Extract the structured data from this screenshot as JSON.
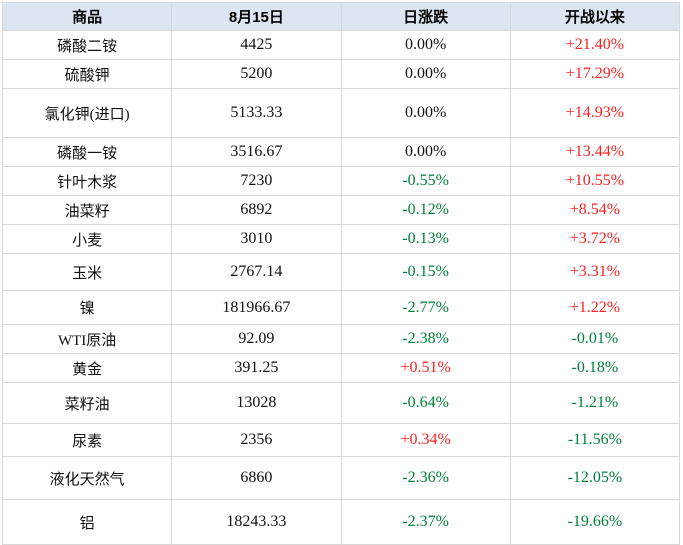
{
  "colors": {
    "up": "#fa2121",
    "down": "#00803a",
    "flat": "#111111",
    "header_bg": "#dce6f3",
    "grid_border": "#d8d8d8"
  },
  "chart_data": {
    "type": "table",
    "title": "",
    "columns": [
      "商品",
      "8月15日",
      "日涨跌",
      "开战以来"
    ],
    "rows": [
      {
        "name": "磷酸二铵",
        "price": "4425",
        "daily": "0.00%",
        "daily_dir": "flat",
        "since": "+21.40%",
        "since_dir": "up"
      },
      {
        "name": "硫酸钾",
        "price": "5200",
        "daily": "0.00%",
        "daily_dir": "flat",
        "since": "+17.29%",
        "since_dir": "up"
      },
      {
        "name": "氯化钾(进口)",
        "price": "5133.33",
        "daily": "0.00%",
        "daily_dir": "flat",
        "since": "+14.93%",
        "since_dir": "up"
      },
      {
        "name": "磷酸一铵",
        "price": "3516.67",
        "daily": "0.00%",
        "daily_dir": "flat",
        "since": "+13.44%",
        "since_dir": "up"
      },
      {
        "name": "针叶木浆",
        "price": "7230",
        "daily": "-0.55%",
        "daily_dir": "down",
        "since": "+10.55%",
        "since_dir": "up"
      },
      {
        "name": "油菜籽",
        "price": "6892",
        "daily": "-0.12%",
        "daily_dir": "down",
        "since": "+8.54%",
        "since_dir": "up"
      },
      {
        "name": "小麦",
        "price": "3010",
        "daily": "-0.13%",
        "daily_dir": "down",
        "since": "+3.72%",
        "since_dir": "up"
      },
      {
        "name": "玉米",
        "price": "2767.14",
        "daily": "-0.15%",
        "daily_dir": "down",
        "since": "+3.31%",
        "since_dir": "up"
      },
      {
        "name": "镍",
        "price": "181966.67",
        "daily": "-2.77%",
        "daily_dir": "down",
        "since": "+1.22%",
        "since_dir": "up"
      },
      {
        "name": "WTI原油",
        "price": "92.09",
        "daily": "-2.38%",
        "daily_dir": "down",
        "since": "-0.01%",
        "since_dir": "down"
      },
      {
        "name": "黄金",
        "price": "391.25",
        "daily": "+0.51%",
        "daily_dir": "up",
        "since": "-0.18%",
        "since_dir": "down"
      },
      {
        "name": "菜籽油",
        "price": "13028",
        "daily": "-0.64%",
        "daily_dir": "down",
        "since": "-1.21%",
        "since_dir": "down"
      },
      {
        "name": "尿素",
        "price": "2356",
        "daily": "+0.34%",
        "daily_dir": "up",
        "since": "-11.56%",
        "since_dir": "down"
      },
      {
        "name": "液化天然气",
        "price": "6860",
        "daily": "-2.36%",
        "daily_dir": "down",
        "since": "-12.05%",
        "since_dir": "down"
      },
      {
        "name": "铝",
        "price": "18243.33",
        "daily": "-2.37%",
        "daily_dir": "down",
        "since": "-19.66%",
        "since_dir": "down"
      }
    ]
  }
}
